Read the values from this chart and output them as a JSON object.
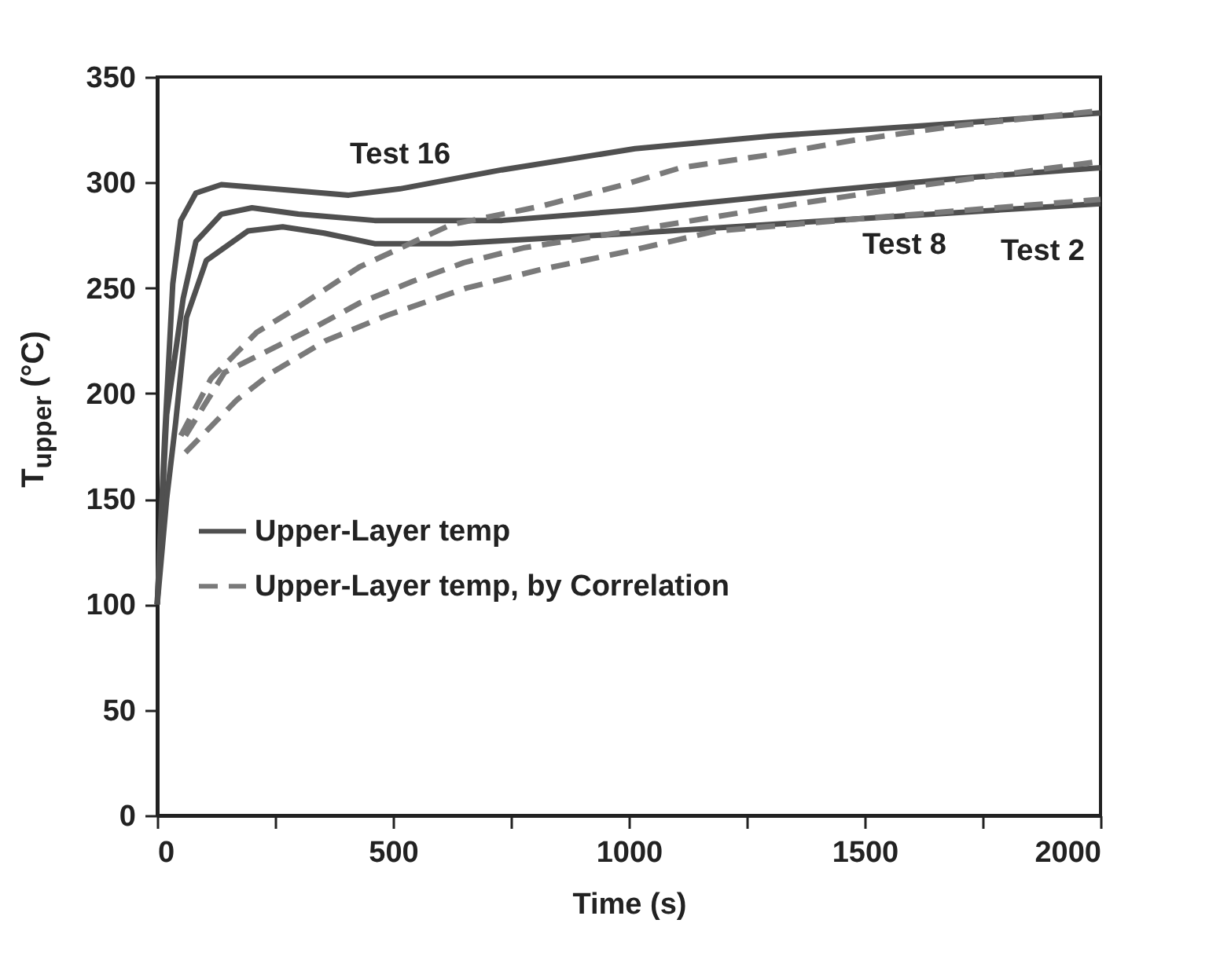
{
  "chart_data": {
    "type": "line",
    "xlabel": "Time (s)",
    "ylabel": "T$_{upper}$ (°C)",
    "series": [
      {
        "name": "Upper-Layer temp",
        "color": "#505050",
        "line_style": "solid",
        "x": [
          0,
          16,
          33,
          50,
          82,
          136,
          244,
          406,
          515,
          731,
          1013,
          1300,
          1630,
          2000
        ],
        "values": [
          100,
          180,
          252,
          282,
          295,
          299,
          297,
          294,
          297,
          306,
          316,
          322,
          327,
          333
        ]
      },
      {
        "color": "#505050",
        "line_style": "solid",
        "x": [
          0,
          20,
          55,
          82,
          136,
          201,
          299,
          461,
          731,
          1013,
          1412,
          1700,
          2000
        ],
        "values": [
          100,
          190,
          245,
          272,
          285,
          288,
          285,
          282,
          282,
          287,
          296,
          302,
          307
        ]
      },
      {
        "color": "#505050",
        "line_style": "solid",
        "x": [
          0,
          20,
          39,
          62,
          104,
          192,
          266,
          354,
          461,
          623,
          1013,
          1500,
          2000
        ],
        "values": [
          100,
          150,
          186,
          236,
          263,
          277,
          279,
          276,
          271,
          271,
          276,
          283,
          290
        ]
      },
      {
        "name": "Upper-Layer temp, by Correlation",
        "color": "#7a7a7a",
        "line_style": "dashed",
        "x": [
          50,
          114,
          211,
          299,
          429,
          623,
          818,
          990,
          1110,
          1295,
          1477,
          1700,
          2000
        ],
        "values": [
          180,
          207,
          229,
          241,
          260,
          280,
          289,
          299,
          307,
          313,
          320,
          327,
          334
        ]
      },
      {
        "color": "#7a7a7a",
        "line_style": "dashed",
        "x": [
          60,
          143,
          250,
          331,
          430,
          540,
          650,
          776,
          1000,
          1300,
          1600,
          1800,
          2000
        ],
        "values": [
          180,
          210,
          222,
          231,
          243,
          253,
          262,
          269,
          277,
          288,
          298,
          304,
          310
        ]
      },
      {
        "color": "#7a7a7a",
        "line_style": "dashed",
        "x": [
          60,
          169,
          244,
          357,
          487,
          656,
          818,
          990,
          1185,
          1500,
          2000
        ],
        "values": [
          172,
          197,
          210,
          225,
          237,
          250,
          259,
          267,
          277,
          283,
          292
        ]
      }
    ],
    "annotations": [
      {
        "text": "Test 16",
        "x": 515,
        "y": 297
      },
      {
        "text": "Test 8",
        "x": 1700,
        "y": 302
      },
      {
        "text": "Test 2",
        "x": 2000,
        "y": 290
      }
    ],
    "xlim": [
      0,
      2000
    ],
    "xticks": [
      0,
      {
        "value": 250,
        "label": null
      },
      500,
      {
        "value": 750,
        "label": null
      },
      1000,
      {
        "value": 1250,
        "label": null
      },
      1500,
      {
        "value": 1750,
        "label": null
      },
      2000
    ],
    "ylim": [
      0,
      350
    ],
    "yticks": [
      0,
      50,
      100,
      150,
      200,
      250,
      300,
      350
    ],
    "grid": false,
    "legend": "left"
  }
}
